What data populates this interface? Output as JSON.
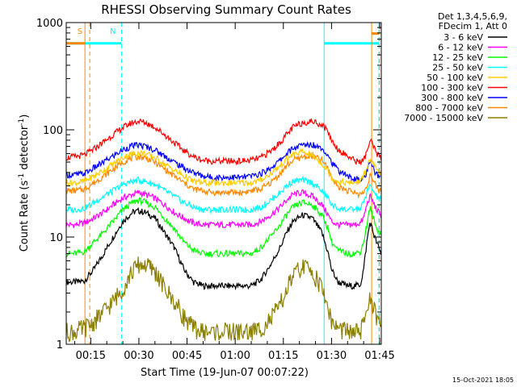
{
  "chart_data": {
    "type": "line",
    "title": "RHESSI Observing Summary Count Rates",
    "xlabel": "Start Time (19-Jun-07 00:07:22)",
    "ylabel_main": "Count Rate (s",
    "ylabel_sup1": "-1",
    "ylabel_mid": " detector",
    "ylabel_sup2": "-1",
    "ylabel_end": ")",
    "yscale": "log",
    "ylim": [
      1,
      1000
    ],
    "xlim_minutes": [
      7.37,
      105.5
    ],
    "x_ticks": [
      {
        "label": "00:15",
        "minutes": 15
      },
      {
        "label": "00:30",
        "minutes": 30
      },
      {
        "label": "00:45",
        "minutes": 45
      },
      {
        "label": "01:00",
        "minutes": 60
      },
      {
        "label": "01:15",
        "minutes": 75
      },
      {
        "label": "01:30",
        "minutes": 90
      },
      {
        "label": "01:45",
        "minutes": 105
      }
    ],
    "y_ticks": [
      {
        "label": "1",
        "value": 1
      },
      {
        "label": "10",
        "value": 10
      },
      {
        "label": "100",
        "value": 100
      },
      {
        "label": "1000",
        "value": 1000
      }
    ],
    "legend_header": [
      "Det 1,3,4,5,6,9,",
      "FDecim 1, Att 0"
    ],
    "legend_placement": "right",
    "timestamp": "15-Oct-2021 18:05",
    "x_minutes": [
      7.4,
      10,
      13,
      16,
      19,
      22,
      25,
      28,
      30,
      32,
      35,
      38,
      41,
      44,
      47,
      50,
      53,
      56,
      59,
      62,
      65,
      68,
      71,
      74,
      76,
      78,
      81,
      84,
      87,
      89,
      90,
      92,
      95,
      97,
      99,
      100,
      101,
      102,
      103,
      104,
      105.4
    ],
    "series": [
      {
        "name": "3 - 6 keV",
        "color": "#000000",
        "values": [
          3.8,
          3.8,
          3.9,
          5,
          7,
          10,
          14,
          17,
          17.5,
          17,
          15,
          11,
          8,
          5,
          3.8,
          3.5,
          3.5,
          3.5,
          3.5,
          3.5,
          3.5,
          4,
          5.5,
          8,
          11,
          14,
          16,
          15,
          11,
          7,
          5,
          3.8,
          3.5,
          3.5,
          3.6,
          5,
          9,
          14,
          11,
          9,
          7
        ]
      },
      {
        "name": "6 - 12 keV",
        "color": "#ff00ff",
        "values": [
          13,
          13,
          13.5,
          15,
          17,
          20,
          23,
          25,
          26,
          25,
          23,
          20,
          17,
          15,
          13.5,
          13,
          13,
          13,
          13,
          13,
          13,
          14,
          16,
          19,
          22,
          25,
          26,
          24,
          20,
          16,
          14,
          13,
          13,
          13,
          13.5,
          15,
          20,
          24,
          21,
          18,
          16
        ]
      },
      {
        "name": "12 - 25 keV",
        "color": "#00ff00",
        "values": [
          7,
          7,
          7.3,
          9,
          11,
          14,
          18,
          21,
          22,
          21,
          19,
          15,
          12,
          9,
          7.5,
          7,
          7,
          7,
          7,
          7,
          7,
          8,
          10,
          13,
          16,
          19,
          21,
          20,
          16,
          12,
          9,
          7.5,
          7,
          7,
          7.3,
          9,
          13,
          19,
          15,
          12,
          11
        ]
      },
      {
        "name": "25 - 50 keV",
        "color": "#00ffff",
        "values": [
          18,
          18,
          18.5,
          21,
          24,
          27,
          31,
          33,
          34,
          33,
          31,
          27,
          24,
          21,
          19,
          18,
          18,
          18,
          18,
          18,
          18,
          19,
          22,
          26,
          30,
          33,
          34,
          32,
          27,
          23,
          20,
          18.5,
          18,
          18,
          18.5,
          21,
          26,
          30,
          27,
          24,
          22
        ]
      },
      {
        "name": "50 - 100 keV",
        "color": "#ffcc00",
        "values": [
          32,
          32,
          33,
          37,
          42,
          48,
          55,
          60,
          61,
          60,
          55,
          48,
          42,
          37,
          33,
          32,
          32,
          32,
          32,
          32,
          32,
          34,
          39,
          46,
          53,
          59,
          62,
          58,
          49,
          41,
          36,
          33,
          32,
          32,
          33,
          37,
          45,
          52,
          47,
          42,
          38
        ]
      },
      {
        "name": "100 - 300 keV",
        "color": "#ff0000",
        "values": [
          55,
          56,
          58,
          66,
          77,
          90,
          105,
          117,
          120,
          117,
          106,
          90,
          76,
          64,
          56,
          52,
          51,
          51,
          51,
          51,
          52,
          55,
          63,
          76,
          90,
          105,
          117,
          120,
          112,
          96,
          80,
          66,
          57,
          52,
          50,
          52,
          62,
          80,
          70,
          60,
          55
        ]
      },
      {
        "name": "300 - 800 keV",
        "color": "#0000ff",
        "values": [
          38,
          38,
          39,
          44,
          50,
          57,
          65,
          71,
          72,
          70,
          65,
          57,
          50,
          44,
          40,
          37,
          36,
          36,
          36,
          36,
          37,
          39,
          44,
          52,
          60,
          67,
          72,
          73,
          68,
          58,
          50,
          42,
          37,
          35,
          34,
          35,
          40,
          50,
          44,
          38,
          36
        ]
      },
      {
        "name": "800 - 7000 keV",
        "color": "#ff8800",
        "values": [
          27,
          27,
          28,
          32,
          37,
          43,
          50,
          55,
          56,
          55,
          50,
          43,
          37,
          32,
          28,
          27,
          26,
          26,
          26,
          26,
          27,
          28,
          32,
          39,
          46,
          52,
          56,
          57,
          52,
          43,
          36,
          30,
          27,
          26,
          25,
          26,
          30,
          38,
          33,
          29,
          27
        ]
      },
      {
        "name": "7000 - 15000 keV",
        "color": "#8b8000",
        "values": [
          1.3,
          1.3,
          1.4,
          1.6,
          2,
          2.5,
          3.3,
          4.8,
          5.5,
          5.5,
          4.8,
          3.3,
          2.5,
          1.8,
          1.4,
          1.3,
          1.3,
          1.3,
          1.3,
          1.3,
          1.3,
          1.4,
          1.7,
          2.3,
          3.2,
          4.3,
          5.3,
          4.8,
          3.3,
          2.2,
          1.6,
          1.4,
          1.3,
          1.3,
          1.3,
          1.5,
          2.1,
          3,
          2.2,
          1.7,
          1.5
        ]
      }
    ],
    "markers": [
      {
        "label": "S",
        "color": "#ff8800",
        "minutes": 14.2
      },
      {
        "label": "N",
        "color": "#00ffff",
        "minutes": 24.6
      }
    ],
    "vlines": [
      {
        "minutes": 13.2,
        "color": "#ff8800",
        "style": "solid"
      },
      {
        "minutes": 14.7,
        "color": "#ff8800",
        "style": "dashed"
      },
      {
        "minutes": 24.6,
        "color": "#00ffff",
        "style": "dashed"
      },
      {
        "minutes": 87.7,
        "color": "#00ffff",
        "style": "solid"
      },
      {
        "minutes": 102.5,
        "color": "#ff8800",
        "style": "solid"
      },
      {
        "minutes": 104.8,
        "color": "#00ffff",
        "style": "dashed"
      },
      {
        "minutes": 104.9,
        "color": "#ff8800",
        "style": "dashed"
      }
    ],
    "bars": [
      {
        "color": "#00ffff",
        "start": 7.4,
        "end": 24.6,
        "value": 640
      },
      {
        "color": "#00ffff",
        "start": 87.7,
        "end": 104.8,
        "value": 640
      },
      {
        "color": "#ff8800",
        "start": 7.4,
        "end": 13.2,
        "value": 640
      },
      {
        "color": "#ff8800",
        "start": 102.5,
        "end": 104.9,
        "value": 790
      }
    ],
    "grid": false
  }
}
